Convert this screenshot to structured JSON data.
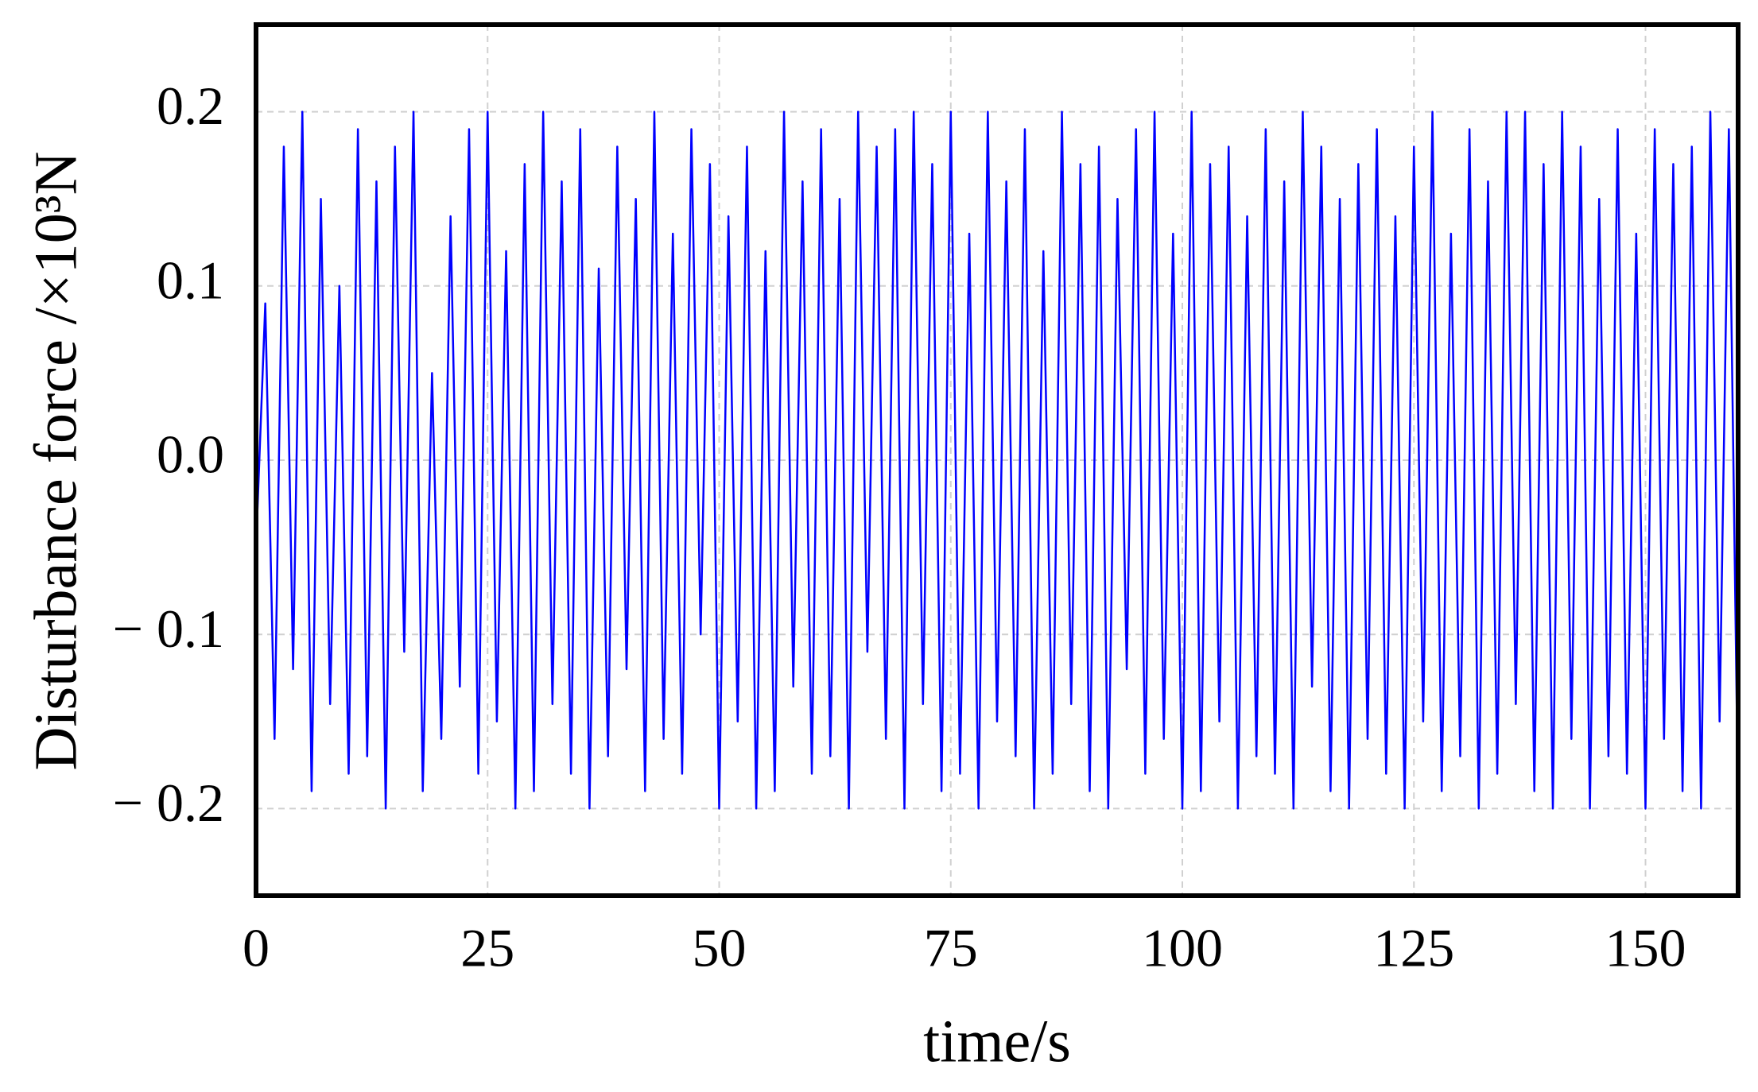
{
  "chart_data": {
    "type": "line",
    "x_label": "time/s",
    "y_label": "Disturbance force /×10³N",
    "x": [
      0,
      1,
      2,
      3,
      4,
      5,
      6,
      7,
      8,
      9,
      10,
      11,
      12,
      13,
      14,
      15,
      16,
      17,
      18,
      19,
      20,
      21,
      22,
      23,
      24,
      25,
      26,
      27,
      28,
      29,
      30,
      31,
      32,
      33,
      34,
      35,
      36,
      37,
      38,
      39,
      40,
      41,
      42,
      43,
      44,
      45,
      46,
      47,
      48,
      49,
      50,
      51,
      52,
      53,
      54,
      55,
      56,
      57,
      58,
      59,
      60,
      61,
      62,
      63,
      64,
      65,
      66,
      67,
      68,
      69,
      70,
      71,
      72,
      73,
      74,
      75,
      76,
      77,
      78,
      79,
      80,
      81,
      82,
      83,
      84,
      85,
      86,
      87,
      88,
      89,
      90,
      91,
      92,
      93,
      94,
      95,
      96,
      97,
      98,
      99,
      100,
      101,
      102,
      103,
      104,
      105,
      106,
      107,
      108,
      109,
      110,
      111,
      112,
      113,
      114,
      115,
      116,
      117,
      118,
      119,
      120,
      121,
      122,
      123,
      124,
      125,
      126,
      127,
      128,
      129,
      130,
      131,
      132,
      133,
      134,
      135,
      136,
      137,
      138,
      139,
      140,
      141,
      142,
      143,
      144,
      145,
      146,
      147,
      148,
      149,
      150,
      151,
      152,
      153,
      154,
      155,
      156,
      157,
      158,
      159,
      160
    ],
    "series": [
      {
        "name": "disturbance",
        "color": "#0000ff",
        "values": [
          -0.05,
          0.09,
          -0.16,
          0.18,
          -0.12,
          0.2,
          -0.19,
          0.15,
          -0.14,
          0.1,
          -0.18,
          0.19,
          -0.17,
          0.16,
          -0.2,
          0.18,
          -0.11,
          0.2,
          -0.19,
          0.05,
          -0.16,
          0.14,
          -0.13,
          0.19,
          -0.18,
          0.2,
          -0.15,
          0.12,
          -0.2,
          0.17,
          -0.19,
          0.2,
          -0.14,
          0.16,
          -0.18,
          0.19,
          -0.2,
          0.11,
          -0.17,
          0.18,
          -0.12,
          0.15,
          -0.19,
          0.2,
          -0.16,
          0.13,
          -0.18,
          0.19,
          -0.1,
          0.17,
          -0.2,
          0.14,
          -0.15,
          0.18,
          -0.2,
          0.12,
          -0.19,
          0.2,
          -0.13,
          0.16,
          -0.18,
          0.19,
          -0.17,
          0.15,
          -0.2,
          0.2,
          -0.11,
          0.18,
          -0.16,
          0.19,
          -0.2,
          0.2,
          -0.14,
          0.17,
          -0.19,
          0.2,
          -0.18,
          0.13,
          -0.2,
          0.2,
          -0.15,
          0.16,
          -0.17,
          0.19,
          -0.2,
          0.12,
          -0.18,
          0.2,
          -0.14,
          0.17,
          -0.19,
          0.18,
          -0.2,
          0.15,
          -0.12,
          0.19,
          -0.18,
          0.2,
          -0.16,
          0.13,
          -0.2,
          0.2,
          -0.19,
          0.17,
          -0.15,
          0.18,
          -0.2,
          0.14,
          -0.17,
          0.19,
          -0.18,
          0.16,
          -0.2,
          0.2,
          -0.13,
          0.18,
          -0.19,
          0.15,
          -0.2,
          0.17,
          -0.16,
          0.19,
          -0.18,
          0.14,
          -0.2,
          0.18,
          -0.15,
          0.2,
          -0.19,
          0.13,
          -0.17,
          0.19,
          -0.2,
          0.16,
          -0.18,
          0.2,
          -0.14,
          0.2,
          -0.19,
          0.17,
          -0.2,
          0.2,
          -0.16,
          0.18,
          -0.2,
          0.15,
          -0.17,
          0.19,
          -0.18,
          0.13,
          -0.2,
          0.19,
          -0.16,
          0.17,
          -0.19,
          0.18,
          -0.2,
          0.2,
          -0.15,
          0.19,
          -0.2
        ]
      }
    ],
    "xlim": [
      0,
      160
    ],
    "xticks": [
      0,
      25,
      50,
      75,
      100,
      125,
      150
    ],
    "ylim": [
      -0.25,
      0.25
    ],
    "yticks": [
      {
        "value": -0.2,
        "label": "− 0.2"
      },
      {
        "value": -0.1,
        "label": "− 0.1"
      },
      {
        "value": 0,
        "label": "0.0"
      },
      0.1,
      0.2
    ],
    "grid": true
  }
}
